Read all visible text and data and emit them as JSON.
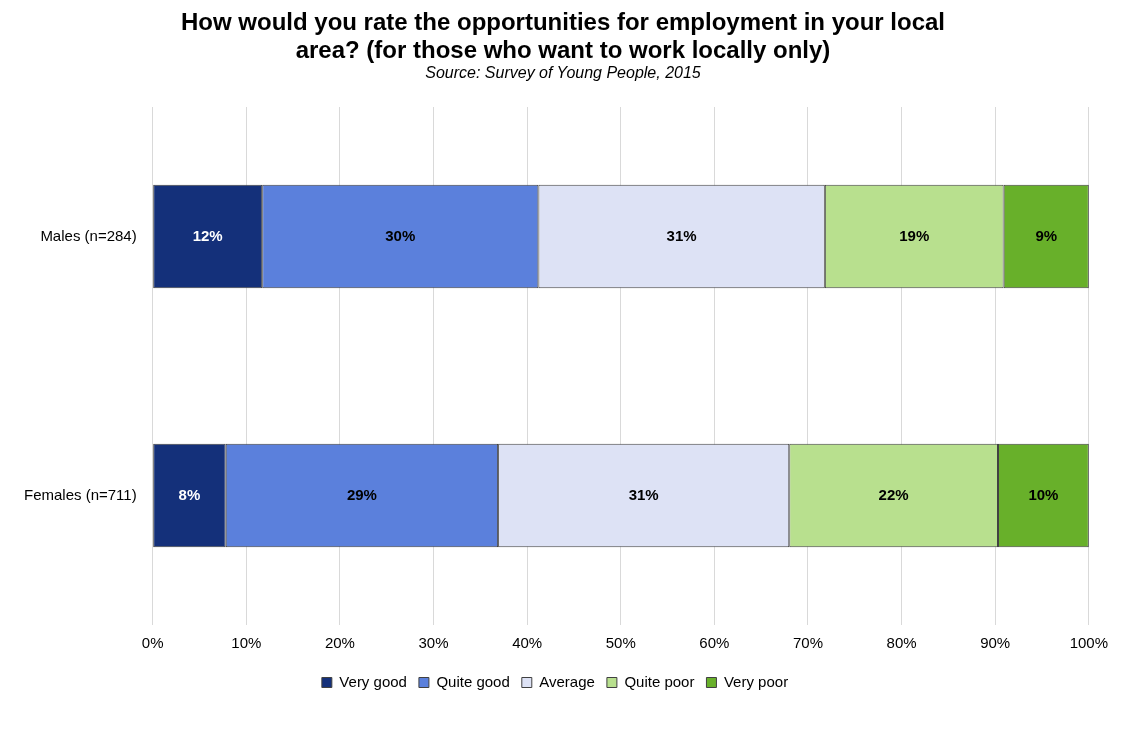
{
  "chart_data": {
    "type": "bar",
    "orientation": "horizontal",
    "stacked": true,
    "title": "How would you rate the opportunities for employment in your local area? (for those who want to work locally only)",
    "subtitle": "Source: Survey of Young People, 2015",
    "categories": [
      "Males (n=284)",
      "Females (n=711)"
    ],
    "series": [
      {
        "name": "Very good",
        "color": "#14307a",
        "values": [
          11.7,
          7.8
        ],
        "value_labels": [
          "12%",
          "8%"
        ]
      },
      {
        "name": "Quite good",
        "color": "#5b80dc",
        "values": [
          29.5,
          29.1
        ],
        "value_labels": [
          "30%",
          "29%"
        ]
      },
      {
        "name": "Average",
        "color": "#dde2f5",
        "values": [
          30.6,
          31.1
        ],
        "value_labels": [
          "31%",
          "31%"
        ]
      },
      {
        "name": "Quite poor",
        "color": "#b8e08e",
        "values": [
          19.1,
          22.3
        ],
        "value_labels": [
          "19%",
          "22%"
        ]
      },
      {
        "name": "Very poor",
        "color": "#68b02a",
        "values": [
          9.1,
          9.7
        ],
        "value_labels": [
          "9%",
          "10%"
        ]
      }
    ],
    "xlim": [
      0,
      100
    ],
    "xticks": [
      {
        "value": 0,
        "label": "0%"
      },
      {
        "value": 10,
        "label": "10%"
      },
      {
        "value": 20,
        "label": "20%"
      },
      {
        "value": 30,
        "label": "30%"
      },
      {
        "value": 40,
        "label": "40%"
      },
      {
        "value": 50,
        "label": "50%"
      },
      {
        "value": 60,
        "label": "60%"
      },
      {
        "value": 70,
        "label": "70%"
      },
      {
        "value": 80,
        "label": "80%"
      },
      {
        "value": 90,
        "label": "90%"
      },
      {
        "value": 100,
        "label": "100%"
      }
    ],
    "grid": "x",
    "legend": "bottom"
  }
}
